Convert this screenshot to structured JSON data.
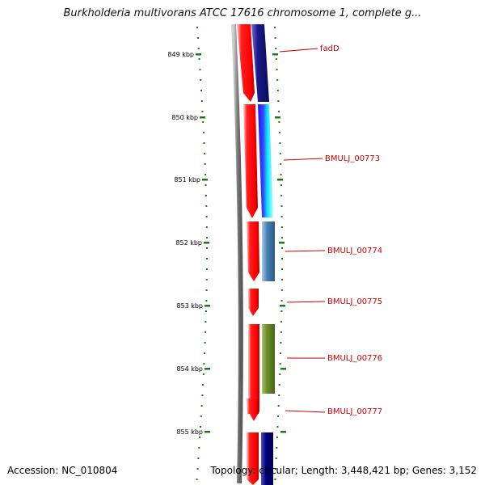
{
  "title": "Burkholderia multivorans ATCC 17616 chromosome 1, complete g...",
  "accession_text": "Accession: NC_010804",
  "summary_text": "Topology: circular; Length: 3,448,421 bp; Genes: 3,152",
  "colors": {
    "tick": "#1a7a1a",
    "backbone": "#808080",
    "reverse_strand": "#ff0000",
    "gene_label": "#cc0000"
  },
  "ruler": {
    "major_labels": [
      "849 kbp",
      "850 kbp",
      "851 kbp",
      "852 kbp",
      "853 kbp",
      "854 kbp",
      "855 kbp"
    ]
  },
  "genes": [
    {
      "label": "fadD",
      "color": "#1a1a8c"
    },
    {
      "label": "BMULJ_00773",
      "color": "#00e5ff"
    },
    {
      "label": "BMULJ_00774",
      "color": "#4682b4"
    },
    {
      "label": "BMULJ_00775",
      "color": "#ffffff"
    },
    {
      "label": "BMULJ_00776",
      "color": "#6b8e23"
    },
    {
      "label": "BMULJ_00777",
      "color": "#ffffff"
    },
    {
      "label": "",
      "color": "#000080"
    }
  ]
}
